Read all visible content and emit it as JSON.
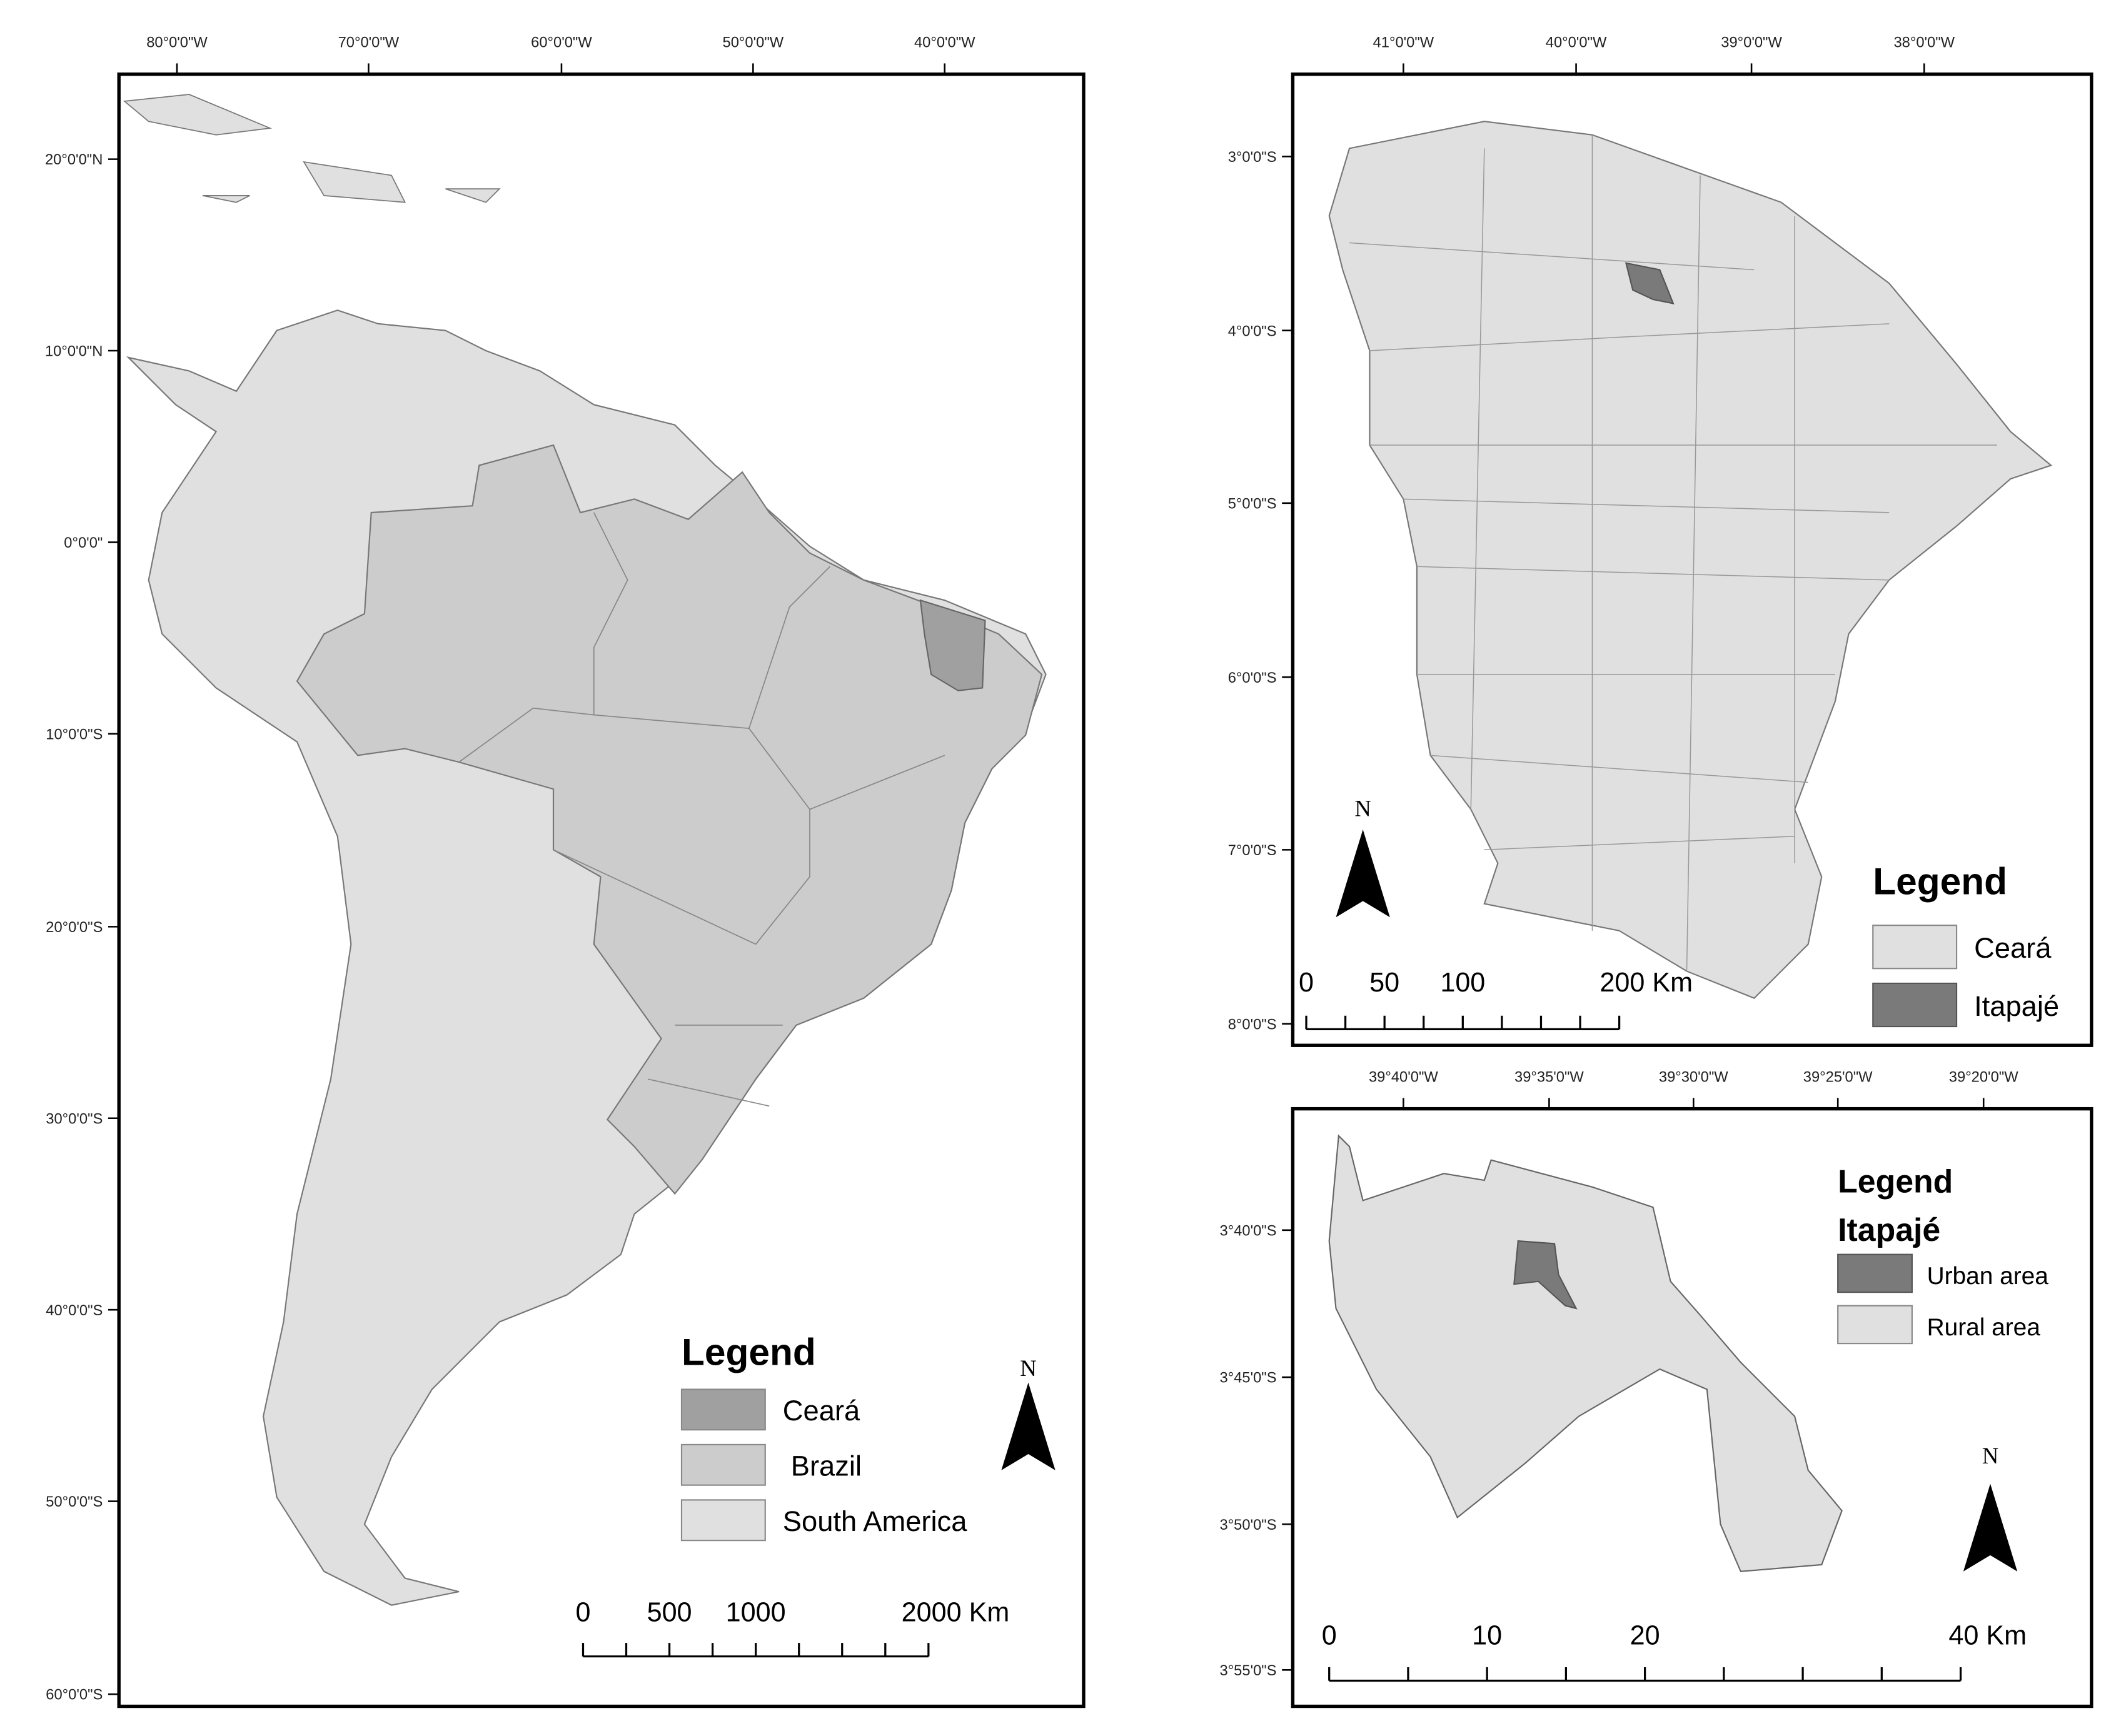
{
  "maps": [
    {
      "x_labels": [
        "80°0'0\"W",
        "70°0'0\"W",
        "60°0'0\"W",
        "50°0'0\"W",
        "40°0'0\"W"
      ],
      "y_labels": [
        "20°0'0\"N",
        "10°0'0\"N",
        "0°0'0\"",
        "10°0'0\"S",
        "20°0'0\"S",
        "30°0'0\"S",
        "40°0'0\"S",
        "50°0'0\"S",
        "60°0'0\"S"
      ],
      "legend": {
        "title": "Legend",
        "items": [
          "Ceará",
          "Brazil",
          "South America"
        ]
      },
      "scale": [
        "0",
        "500",
        "1000",
        "2000 Km"
      ],
      "north": "N"
    },
    {
      "x_labels": [
        "41°0'0\"W",
        "40°0'0\"W",
        "39°0'0\"W",
        "38°0'0\"W"
      ],
      "y_labels": [
        "3°0'0\"S",
        "4°0'0\"S",
        "5°0'0\"S",
        "6°0'0\"S",
        "7°0'0\"S",
        "8°0'0\"S"
      ],
      "legend": {
        "title": "Legend",
        "items": [
          "Ceará",
          "Itapajé"
        ]
      },
      "scale": [
        "0",
        "50",
        "100",
        "200 Km"
      ],
      "north": "N"
    },
    {
      "x_labels": [
        "39°40'0\"W",
        "39°35'0\"W",
        "39°30'0\"W",
        "39°25'0\"W",
        "39°20'0\"W"
      ],
      "y_labels": [
        "3°40'0\"S",
        "3°45'0\"S",
        "3°50'0\"S",
        "3°55'0\"S"
      ],
      "legend": {
        "title": "Legend",
        "subtitle": "Itapajé",
        "items": [
          "Urban area",
          "Rural area"
        ]
      },
      "scale": [
        "0",
        "10",
        "20",
        "40 Km"
      ],
      "north": "N"
    }
  ]
}
